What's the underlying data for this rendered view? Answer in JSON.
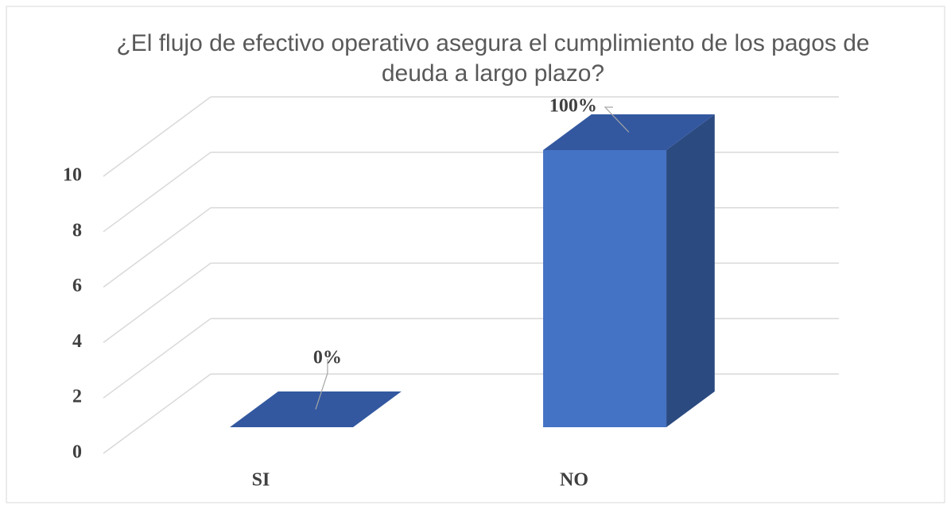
{
  "chart_data": {
    "type": "bar3d",
    "title": "¿El flujo de efectivo operativo asegura el cumplimiento de los pagos de deuda a largo plazo?",
    "categories": [
      "SI",
      "NO"
    ],
    "values": [
      0,
      10
    ],
    "value_labels": [
      "0%",
      "100%"
    ],
    "color": "#4472c4",
    "ylim": [
      0,
      10
    ],
    "yticks": [
      0,
      2,
      4,
      6,
      8,
      10
    ],
    "grid": true
  }
}
